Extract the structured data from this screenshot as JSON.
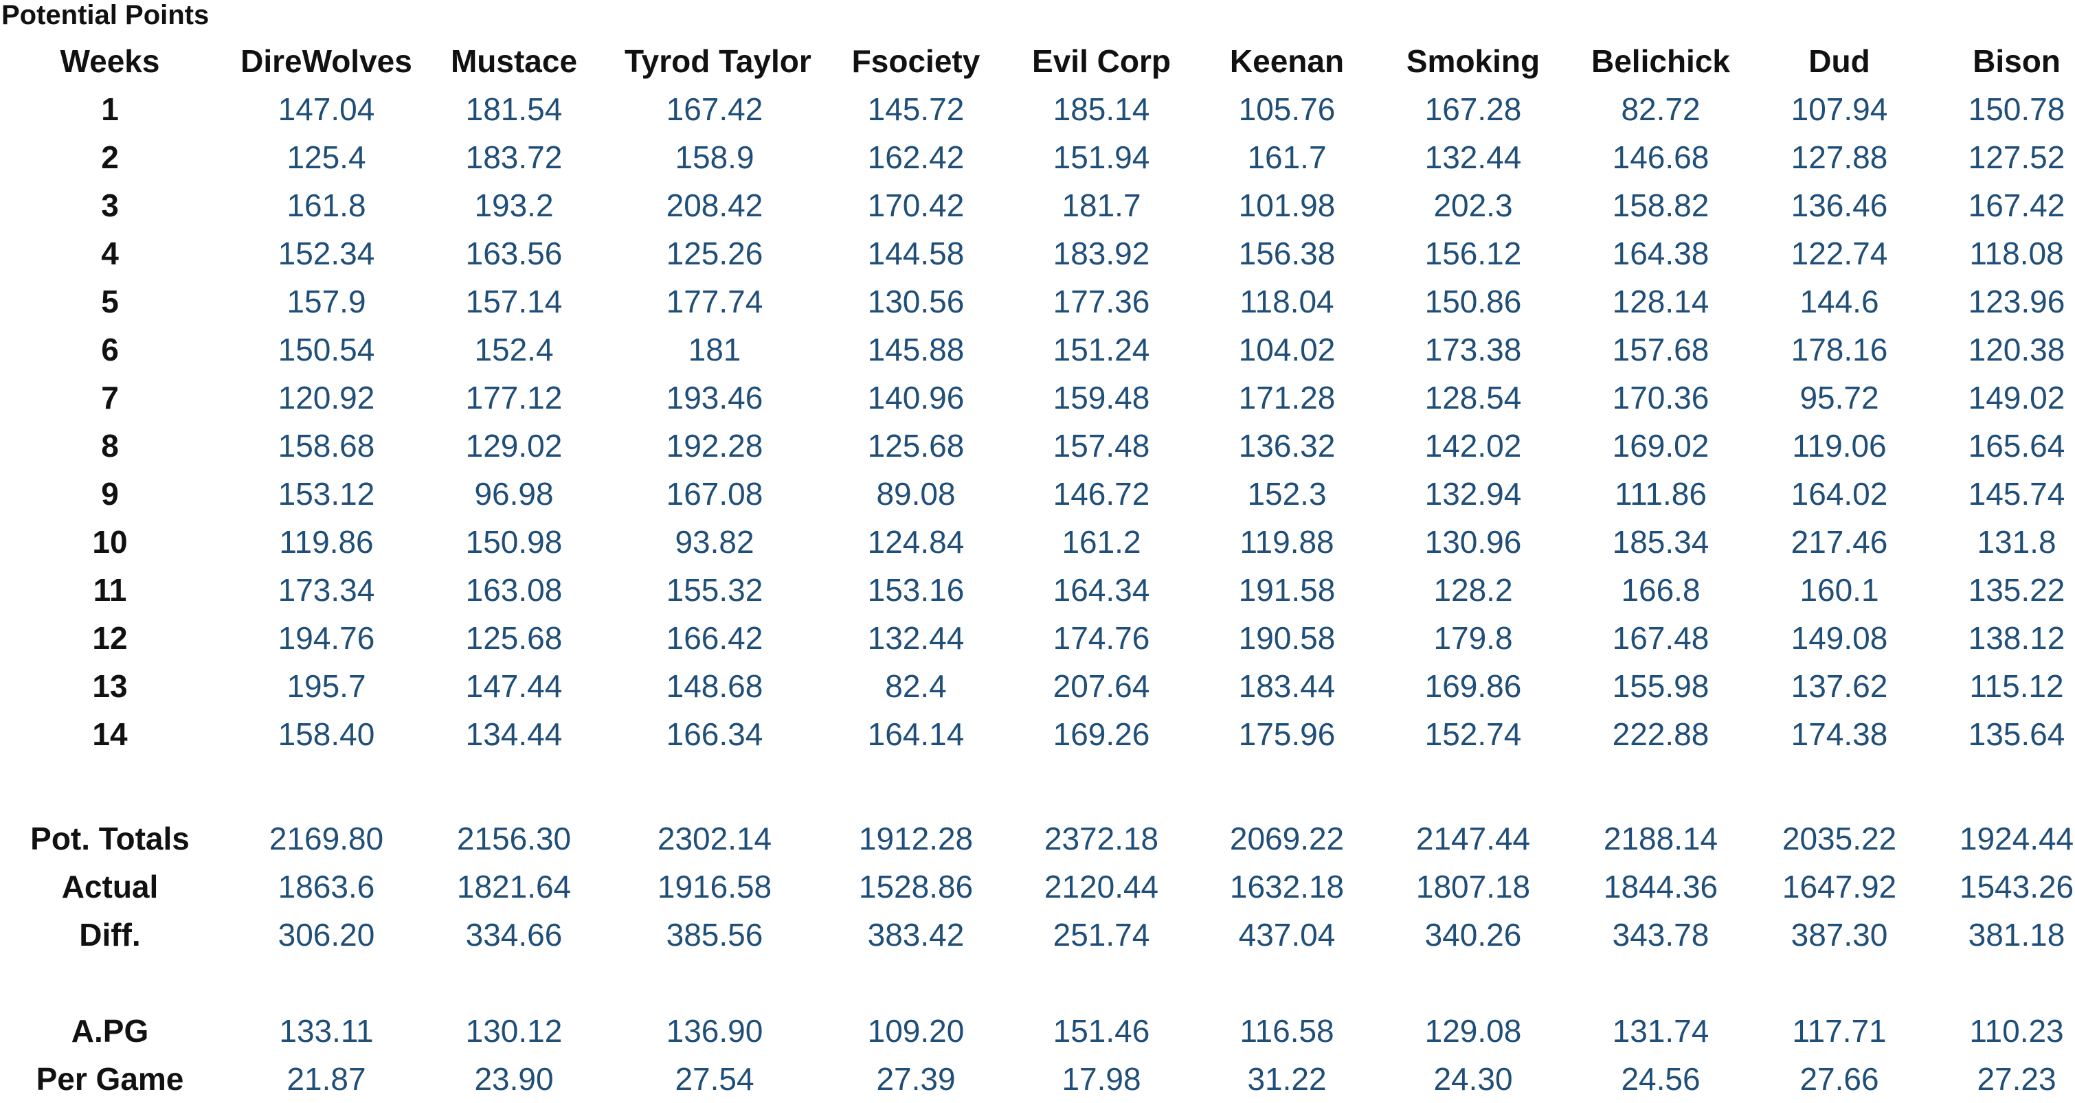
{
  "title": "Potential Points",
  "header_label": "Weeks",
  "teams": [
    "DireWolves",
    "Mustace",
    "Tyrod Taylor",
    "Fsociety",
    "Evil Corp",
    "Keenan",
    "Smoking",
    "Belichick",
    "Dud",
    "Bison"
  ],
  "weeks": [
    {
      "label": "1",
      "values": [
        "147.04",
        "181.54",
        "167.42",
        "145.72",
        "185.14",
        "105.76",
        "167.28",
        "82.72",
        "107.94",
        "150.78"
      ]
    },
    {
      "label": "2",
      "values": [
        "125.4",
        "183.72",
        "158.9",
        "162.42",
        "151.94",
        "161.7",
        "132.44",
        "146.68",
        "127.88",
        "127.52"
      ]
    },
    {
      "label": "3",
      "values": [
        "161.8",
        "193.2",
        "208.42",
        "170.42",
        "181.7",
        "101.98",
        "202.3",
        "158.82",
        "136.46",
        "167.42"
      ]
    },
    {
      "label": "4",
      "values": [
        "152.34",
        "163.56",
        "125.26",
        "144.58",
        "183.92",
        "156.38",
        "156.12",
        "164.38",
        "122.74",
        "118.08"
      ]
    },
    {
      "label": "5",
      "values": [
        "157.9",
        "157.14",
        "177.74",
        "130.56",
        "177.36",
        "118.04",
        "150.86",
        "128.14",
        "144.6",
        "123.96"
      ]
    },
    {
      "label": "6",
      "values": [
        "150.54",
        "152.4",
        "181",
        "145.88",
        "151.24",
        "104.02",
        "173.38",
        "157.68",
        "178.16",
        "120.38"
      ]
    },
    {
      "label": "7",
      "values": [
        "120.92",
        "177.12",
        "193.46",
        "140.96",
        "159.48",
        "171.28",
        "128.54",
        "170.36",
        "95.72",
        "149.02"
      ]
    },
    {
      "label": "8",
      "values": [
        "158.68",
        "129.02",
        "192.28",
        "125.68",
        "157.48",
        "136.32",
        "142.02",
        "169.02",
        "119.06",
        "165.64"
      ]
    },
    {
      "label": "9",
      "values": [
        "153.12",
        "96.98",
        "167.08",
        "89.08",
        "146.72",
        "152.3",
        "132.94",
        "111.86",
        "164.02",
        "145.74"
      ]
    },
    {
      "label": "10",
      "values": [
        "119.86",
        "150.98",
        "93.82",
        "124.84",
        "161.2",
        "119.88",
        "130.96",
        "185.34",
        "217.46",
        "131.8"
      ]
    },
    {
      "label": "11",
      "values": [
        "173.34",
        "163.08",
        "155.32",
        "153.16",
        "164.34",
        "191.58",
        "128.2",
        "166.8",
        "160.1",
        "135.22"
      ]
    },
    {
      "label": "12",
      "values": [
        "194.76",
        "125.68",
        "166.42",
        "132.44",
        "174.76",
        "190.58",
        "179.8",
        "167.48",
        "149.08",
        "138.12"
      ]
    },
    {
      "label": "13",
      "values": [
        "195.7",
        "147.44",
        "148.68",
        "82.4",
        "207.64",
        "183.44",
        "169.86",
        "155.98",
        "137.62",
        "115.12"
      ]
    },
    {
      "label": "14",
      "values": [
        "158.40",
        "134.44",
        "166.34",
        "164.14",
        "169.26",
        "175.96",
        "152.74",
        "222.88",
        "174.38",
        "135.64"
      ]
    }
  ],
  "totals": [
    {
      "label": "Pot. Totals",
      "values": [
        "2169.80",
        "2156.30",
        "2302.14",
        "1912.28",
        "2372.18",
        "2069.22",
        "2147.44",
        "2188.14",
        "2035.22",
        "1924.44"
      ]
    },
    {
      "label": "Actual",
      "values": [
        "1863.6",
        "1821.64",
        "1916.58",
        "1528.86",
        "2120.44",
        "1632.18",
        "1807.18",
        "1844.36",
        "1647.92",
        "1543.26"
      ]
    },
    {
      "label": "Diff.",
      "values": [
        "306.20",
        "334.66",
        "385.56",
        "383.42",
        "251.74",
        "437.04",
        "340.26",
        "343.78",
        "387.30",
        "381.18"
      ]
    }
  ],
  "averages": [
    {
      "label": "A.PG",
      "values": [
        "133.11",
        "130.12",
        "136.90",
        "109.20",
        "151.46",
        "116.58",
        "129.08",
        "131.74",
        "117.71",
        "110.23"
      ]
    },
    {
      "label": "Per Game",
      "values": [
        "21.87",
        "23.90",
        "27.54",
        "27.39",
        "17.98",
        "31.22",
        "24.30",
        "24.56",
        "27.66",
        "27.23"
      ]
    }
  ],
  "colors": {
    "text": "#111111",
    "value": "#1f4e79",
    "background": "#ffffff"
  }
}
